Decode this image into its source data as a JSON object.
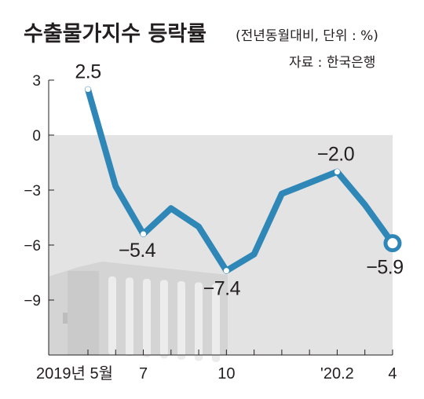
{
  "header": {
    "title": "수출물가지수 등락률",
    "subtitle": "(전년동월대비, 단위 : %)",
    "source": "자료 : 한국은행"
  },
  "colors": {
    "line": "#2f87b8",
    "plot_bg": "#e3e3e3",
    "building": "#d4d4d4",
    "text": "#231f20"
  },
  "chart_data": {
    "type": "line",
    "title": "수출물가지수 등락률",
    "subtitle": "(전년동월대비, 단위 : %)",
    "source": "자료 : 한국은행",
    "x": [
      "2019-05",
      "2019-06",
      "2019-07",
      "2019-08",
      "2019-09",
      "2019-10",
      "2019-11",
      "2019-12",
      "2020-01",
      "2020-02",
      "2020-03",
      "2020-04"
    ],
    "xticks": [
      {
        "x": "2019-05",
        "label": "2019년 5월"
      },
      {
        "x": "2019-07",
        "label": "7"
      },
      {
        "x": "2019-10",
        "label": "10"
      },
      {
        "x": "2020-02",
        "label": "'20.2"
      },
      {
        "x": "2020-04",
        "label": "4"
      }
    ],
    "series": [
      {
        "values": [
          2.5,
          -2.8,
          -5.4,
          -4.0,
          -5.0,
          -7.4,
          -6.5,
          -3.2,
          -2.6,
          -2.0,
          -3.8,
          -5.9
        ]
      }
    ],
    "data_labels": [
      {
        "x": "2019-05",
        "text": "2.5"
      },
      {
        "x": "2019-07",
        "text": "−5.4"
      },
      {
        "x": "2019-10",
        "text": "−7.4"
      },
      {
        "x": "2020-02",
        "text": "−2.0"
      },
      {
        "x": "2020-04",
        "text": "−5.9"
      }
    ],
    "yticks": [
      {
        "value": 3,
        "label": "3"
      },
      {
        "value": 0,
        "label": "0"
      },
      {
        "value": -3,
        "label": "−3"
      },
      {
        "value": -6,
        "label": "−6"
      },
      {
        "value": -9,
        "label": "−9"
      }
    ],
    "ylim": [
      -12,
      3
    ],
    "shaded_below": 0,
    "grid": false,
    "legend": "none"
  }
}
